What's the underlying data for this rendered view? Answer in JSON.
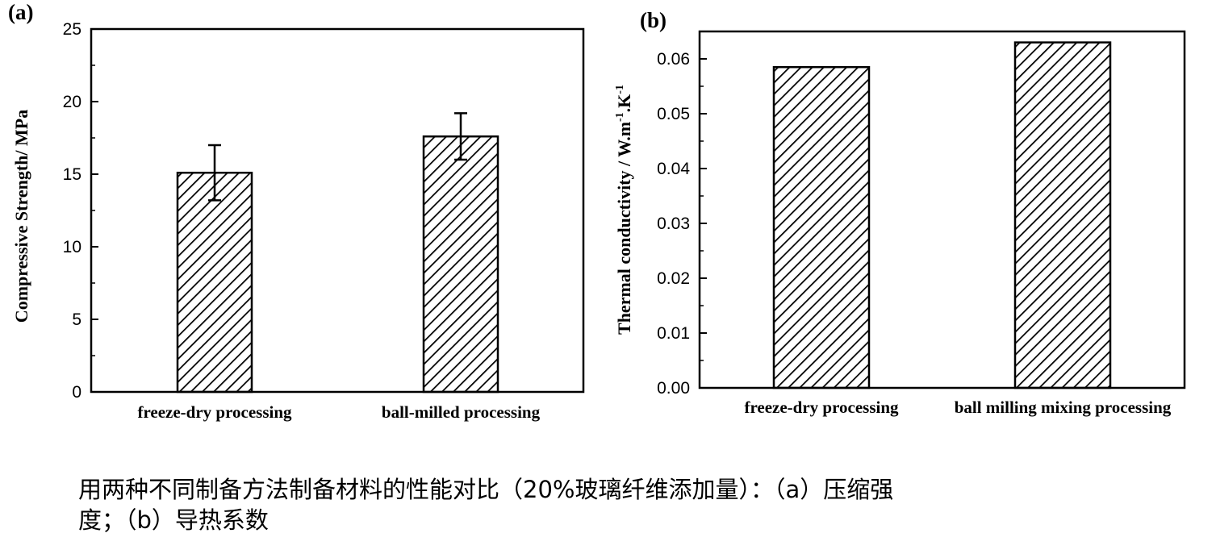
{
  "chart_data": [
    {
      "panel": "(a)",
      "type": "bar",
      "categories": [
        "freeze-dry processing",
        "ball-milled processing"
      ],
      "values": [
        15.1,
        17.6
      ],
      "errors": [
        1.9,
        1.6
      ],
      "ylabel": "Compressive Strength/ MPa",
      "xlabel": "",
      "ylim": [
        0,
        25
      ],
      "yticks": [
        0,
        5,
        10,
        15,
        20,
        25
      ],
      "ytick_labels": [
        "0",
        "5",
        "10",
        "15",
        "20",
        "25"
      ],
      "pattern": "diagonal-hatch"
    },
    {
      "panel": "(b)",
      "type": "bar",
      "categories": [
        "freeze-dry processing",
        "ball milling mixing processing"
      ],
      "values": [
        0.0585,
        0.063
      ],
      "ylabel": "Thermal conductivity / W.m-1.K-1",
      "ylabel_parts": [
        "Thermal conductivity / W.m",
        "-1",
        ".K",
        "-1"
      ],
      "xlabel": "",
      "ylim": [
        0,
        0.065
      ],
      "yticks": [
        0,
        0.01,
        0.02,
        0.03,
        0.04,
        0.05,
        0.06
      ],
      "ytick_labels": [
        "0.00",
        "0.01",
        "0.02",
        "0.03",
        "0.04",
        "0.05",
        "0.06"
      ],
      "pattern": "diagonal-hatch"
    }
  ],
  "caption": {
    "line1": "用两种不同制备方法制备材料的性能对比（20%玻璃纤维添加量）：（a）压缩强",
    "line2": "度；（b）导热系数"
  }
}
